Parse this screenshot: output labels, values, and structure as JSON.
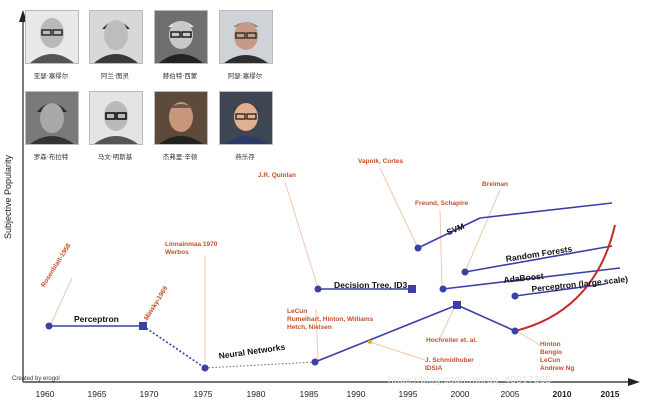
{
  "axis": {
    "y_label": "Subjective Popularity",
    "years": [
      "1960",
      "1965",
      "1970",
      "1975",
      "1980",
      "1985",
      "1990",
      "1995",
      "2000",
      "2005",
      "2010",
      "2015"
    ],
    "bold_years": [
      "2010",
      "2015"
    ]
  },
  "portraits": {
    "row1": [
      "亚瑟·塞缪尔",
      "阿兰·图灵",
      "赫伯特·西蒙",
      "阿瑟·塞缪尔"
    ],
    "row2": [
      "罗森·布拉特",
      "马文·明斯基",
      "杰弗里·辛顿",
      "燕乐存"
    ]
  },
  "milestones": {
    "rosenblatt": "Rosenblatt-1958",
    "perceptron": "Perceptron",
    "minsky": "Minsky-1969",
    "linnainmaa": [
      "Linnainmaa 1970",
      "Werbos"
    ],
    "neural_networks": "Neural Networks",
    "lecun_group": [
      "LeCun",
      "Rumelhart, Hinton, Williams",
      "Hetch, Nielsen"
    ],
    "quinlan": "J.R. Quinlan",
    "decision_tree": "Decision Tree, ID3",
    "vapnik": "Vapnik, Cortes",
    "svm": "SVM",
    "freund": "Freund, Schapire",
    "breiman": "Breiman",
    "random_forests": "Random Forests",
    "adaboost": "AdaBoost",
    "perceptron_large": "Perceptron (large scale)",
    "hochreiter": "Hochreiter et. al.",
    "schmidhuber": [
      "J. Schmidhuber",
      "IDSIA"
    ],
    "hinton_group": [
      "Hinton",
      "Bengio",
      "LeCun",
      "Andrew Ng"
    ]
  },
  "footer": {
    "credit": "Created by erogol",
    "watermark": "https://blog.csdn.net/qq_40917365"
  },
  "colors": {
    "line": "#3b3fa8",
    "curve": "#c62a2a",
    "label": "#c0522a",
    "leader": "#f0c8b0"
  }
}
